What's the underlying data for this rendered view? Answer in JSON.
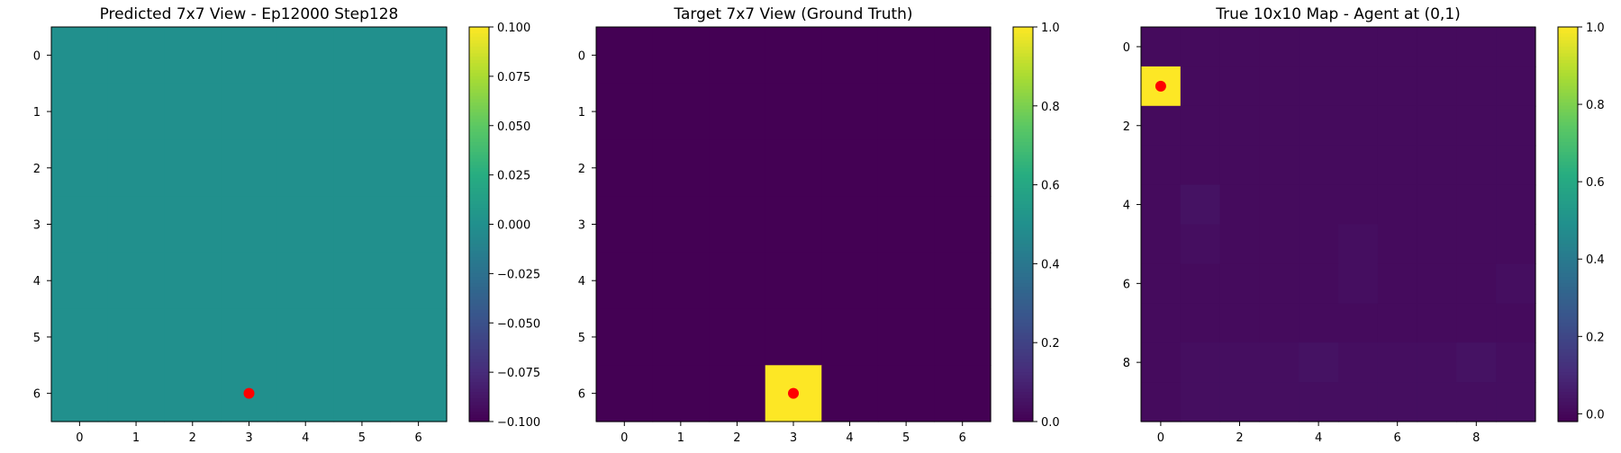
{
  "chart_data": [
    {
      "type": "heatmap",
      "title": "Predicted 7x7 View - Ep12000 Step128",
      "rows": 7,
      "cols": 7,
      "xticks": [
        0,
        1,
        2,
        3,
        4,
        5,
        6
      ],
      "yticks": [
        0,
        1,
        2,
        3,
        4,
        5,
        6
      ],
      "values": [
        [
          0,
          0,
          0,
          0,
          0,
          0,
          0
        ],
        [
          0,
          0,
          0,
          0,
          0,
          0,
          0
        ],
        [
          0,
          0,
          0,
          0,
          0,
          0,
          0
        ],
        [
          0,
          0,
          0,
          0,
          0,
          0,
          0
        ],
        [
          0,
          0,
          0,
          0,
          0,
          0,
          0
        ],
        [
          0,
          0,
          0,
          0,
          0,
          0,
          0
        ],
        [
          0,
          0,
          0,
          0,
          0,
          0,
          0
        ]
      ],
      "vmin": -0.1,
      "vmax": 0.1,
      "colorbar_ticks": [
        "0.100",
        "0.075",
        "0.050",
        "0.025",
        "0.000",
        "−0.025",
        "−0.050",
        "−0.075",
        "−0.100"
      ],
      "colorbar_tick_values": [
        0.1,
        0.075,
        0.05,
        0.025,
        0.0,
        -0.025,
        -0.05,
        -0.075,
        -0.1
      ],
      "marker": {
        "x": 3,
        "y": 6,
        "color": "#ff0000"
      }
    },
    {
      "type": "heatmap",
      "title": "Target 7x7 View (Ground Truth)",
      "rows": 7,
      "cols": 7,
      "xticks": [
        0,
        1,
        2,
        3,
        4,
        5,
        6
      ],
      "yticks": [
        0,
        1,
        2,
        3,
        4,
        5,
        6
      ],
      "values": [
        [
          0,
          0,
          0,
          0,
          0,
          0,
          0
        ],
        [
          0,
          0,
          0,
          0,
          0,
          0,
          0
        ],
        [
          0,
          0,
          0,
          0,
          0,
          0,
          0
        ],
        [
          0,
          0,
          0,
          0,
          0,
          0,
          0
        ],
        [
          0,
          0,
          0,
          0,
          0,
          0,
          0
        ],
        [
          0,
          0,
          0,
          0,
          0,
          0,
          0
        ],
        [
          0,
          0,
          0,
          1,
          0,
          0,
          0
        ]
      ],
      "vmin": 0.0,
      "vmax": 1.0,
      "colorbar_ticks": [
        "1.0",
        "0.8",
        "0.6",
        "0.4",
        "0.2",
        "0.0"
      ],
      "colorbar_tick_values": [
        1.0,
        0.8,
        0.6,
        0.4,
        0.2,
        0.0
      ],
      "marker": {
        "x": 3,
        "y": 6,
        "color": "#ff0000"
      }
    },
    {
      "type": "heatmap",
      "title": "True 10x10 Map - Agent at (0,1)",
      "rows": 10,
      "cols": 10,
      "xticks": [
        0,
        2,
        4,
        6,
        8
      ],
      "yticks": [
        0,
        2,
        4,
        6,
        8
      ],
      "values": [
        [
          0.01,
          0.01,
          0.01,
          0.01,
          0.01,
          0.01,
          0.01,
          0.01,
          0.01,
          0.01
        ],
        [
          1.0,
          0.01,
          0.01,
          0.01,
          0.01,
          0.01,
          0.01,
          0.01,
          0.01,
          0.01
        ],
        [
          0.01,
          0.01,
          0.01,
          0.01,
          0.01,
          0.01,
          0.01,
          0.01,
          0.01,
          0.01
        ],
        [
          0.01,
          0.01,
          0.01,
          0.01,
          0.01,
          0.01,
          0.01,
          0.01,
          0.01,
          0.01
        ],
        [
          0.01,
          0.03,
          0.01,
          0.01,
          0.01,
          0.01,
          0.01,
          0.01,
          0.01,
          0.01
        ],
        [
          0.01,
          0.02,
          0.01,
          0.01,
          0.01,
          0.02,
          0.01,
          0.01,
          0.01,
          0.01
        ],
        [
          0.01,
          0.01,
          0.01,
          0.01,
          0.01,
          0.02,
          0.01,
          0.01,
          0.01,
          0.02
        ],
        [
          0.01,
          0.01,
          0.01,
          0.01,
          0.01,
          0.01,
          0.01,
          0.01,
          0.01,
          0.01
        ],
        [
          0.01,
          0.02,
          0.02,
          0.02,
          0.03,
          0.02,
          0.02,
          0.02,
          0.03,
          0.02
        ],
        [
          0.01,
          0.02,
          0.02,
          0.02,
          0.02,
          0.02,
          0.02,
          0.02,
          0.02,
          0.02
        ]
      ],
      "vmin": -0.02,
      "vmax": 1.0,
      "colorbar_ticks": [
        "1.0",
        "0.8",
        "0.6",
        "0.4",
        "0.2",
        "0.0"
      ],
      "colorbar_tick_values": [
        1.0,
        0.8,
        0.6,
        0.4,
        0.2,
        0.0
      ],
      "marker": {
        "x": 0,
        "y": 1,
        "color": "#ff0000"
      }
    }
  ]
}
